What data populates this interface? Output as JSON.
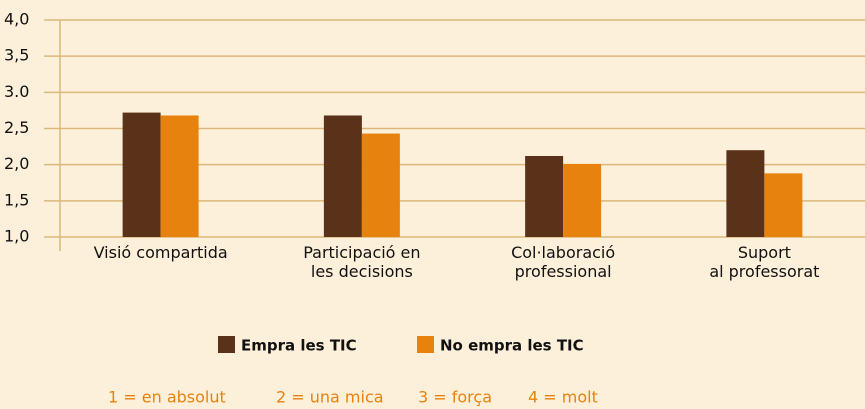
{
  "chart_data": {
    "type": "bar",
    "categories": [
      "Visió compartida",
      "Participació en\nles decisions",
      "Col·laboració\nprofessional",
      "Suport\nal professorat"
    ],
    "series": [
      {
        "name": "Empra les TIC",
        "color": "#5a321a",
        "values": [
          2.72,
          2.68,
          2.12,
          2.2
        ]
      },
      {
        "name": "No empra les TIC",
        "color": "#e8820e",
        "values": [
          2.68,
          2.43,
          2.01,
          1.88
        ]
      }
    ],
    "ylim": [
      1,
      4
    ],
    "yticks": [
      {
        "value": 1,
        "label": "1,0"
      },
      {
        "value": 1.5,
        "label": "1,5"
      },
      {
        "value": 2,
        "label": "2,0"
      },
      {
        "value": 2.5,
        "label": "2,5"
      },
      {
        "value": 3,
        "label": "3.0"
      },
      {
        "value": 3.5,
        "label": "3,5"
      },
      {
        "value": 4,
        "label": "4,0"
      }
    ],
    "grid": true,
    "scale_notes": [
      "1 = en absolut",
      "2 = una mica",
      "3 = força",
      "4 = molt"
    ]
  }
}
